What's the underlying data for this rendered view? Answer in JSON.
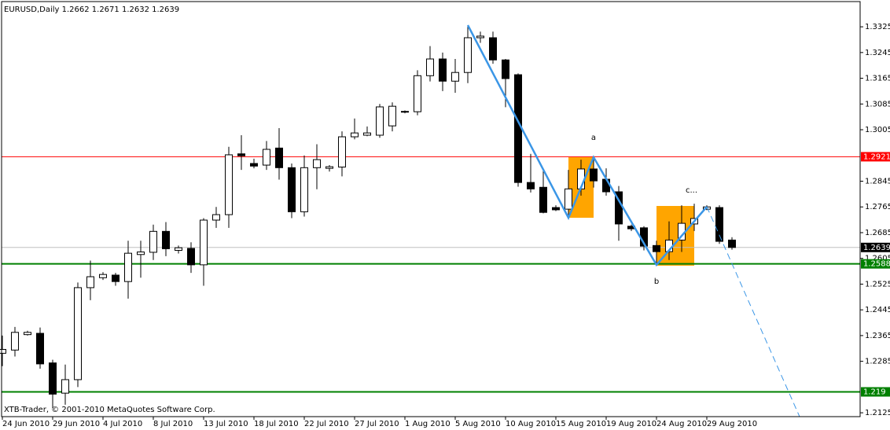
{
  "chart_data": {
    "type": "candlestick",
    "title": "EURUSD,Daily  1.2662 1.2671 1.2632 1.2639",
    "footer": "XTB-Trader, © 2001-2010 MetaQuotes Software Corp.",
    "annotations": [
      "a",
      "b",
      "c..."
    ],
    "categories": [
      "24 Jun 2010",
      null,
      null,
      null,
      "29 Jun 2010",
      null,
      null,
      null,
      "4 Jul 2010",
      null,
      null,
      null,
      "8 Jul 2010",
      null,
      null,
      null,
      "13 Jul 2010",
      null,
      null,
      null,
      "18 Jul 2010",
      null,
      null,
      null,
      "22 Jul 2010",
      null,
      null,
      null,
      "27 Jul 2010",
      null,
      null,
      null,
      "1 Aug 2010",
      null,
      null,
      null,
      "5 Aug 2010",
      null,
      null,
      null,
      "10 Aug 2010",
      null,
      null,
      null,
      "15 Aug 2010",
      null,
      null,
      null,
      "19 Aug 2010",
      null,
      null,
      null,
      "24 Aug 2010",
      null,
      null,
      null,
      "29 Aug 2010",
      null,
      null
    ],
    "open": [
      1.231,
      1.232,
      1.2368,
      1.2372,
      1.228,
      1.2186,
      1.2228,
      1.2514,
      1.2545,
      1.2553,
      1.2533,
      1.2617,
      1.2624,
      1.2689,
      1.263,
      1.2636,
      1.2585,
      1.2724,
      1.2741,
      1.293,
      1.29,
      1.2895,
      1.2948,
      1.2887,
      1.275,
      1.2887,
      1.2885,
      1.2889,
      1.2983,
      1.2988,
      1.2988,
      1.3017,
      1.3062,
      1.3061,
      1.3173,
      1.3225,
      1.3156,
      1.3183,
      1.3291,
      1.3291,
      1.3222,
      1.3176,
      1.2841,
      1.2826,
      1.2763,
      1.2758,
      1.2821,
      1.2883,
      1.2851,
      1.2812,
      1.2705,
      1.27,
      1.2645,
      1.2626,
      1.2662,
      1.2712,
      1.2758,
      1.2763,
      1.2662
    ],
    "high": [
      1.2365,
      1.2392,
      1.238,
      1.239,
      1.229,
      1.2275,
      1.253,
      1.2598,
      1.2562,
      1.256,
      1.266,
      1.266,
      1.271,
      1.2718,
      1.2645,
      1.2655,
      1.273,
      1.2765,
      1.2952,
      1.2988,
      1.2915,
      1.297,
      1.301,
      1.29,
      1.2925,
      1.296,
      1.2895,
      1.3,
      1.304,
      1.3015,
      1.3085,
      1.309,
      1.3065,
      1.319,
      1.3265,
      1.3245,
      1.3225,
      1.3325,
      1.331,
      1.331,
      1.3225,
      1.318,
      1.293,
      1.288,
      1.277,
      1.288,
      1.2912,
      1.292,
      1.2885,
      1.283,
      1.271,
      1.2705,
      1.266,
      1.272,
      1.277,
      1.2775,
      1.277,
      1.277,
      1.2671
    ],
    "low": [
      1.227,
      1.23,
      1.2365,
      1.2262,
      1.214,
      1.215,
      1.2205,
      1.2475,
      1.2538,
      1.252,
      1.248,
      1.2545,
      1.26,
      1.2612,
      1.262,
      1.256,
      1.252,
      1.27,
      1.27,
      1.288,
      1.2885,
      1.288,
      1.285,
      1.273,
      1.2735,
      1.282,
      1.2875,
      1.286,
      1.2975,
      1.2985,
      1.298,
      1.3,
      1.3056,
      1.305,
      1.3155,
      1.3125,
      1.312,
      1.315,
      1.3275,
      1.321,
      1.3075,
      1.2828,
      1.281,
      1.2745,
      1.2752,
      1.274,
      1.28,
      1.2825,
      1.28,
      1.266,
      1.269,
      1.263,
      1.259,
      1.26,
      1.2625,
      1.269,
      1.2755,
      1.265,
      1.2632
    ],
    "close": [
      1.2322,
      1.2375,
      1.2375,
      1.2277,
      1.2183,
      1.2228,
      1.2514,
      1.2548,
      1.2555,
      1.2533,
      1.2621,
      1.2625,
      1.2689,
      1.2635,
      1.2638,
      1.2585,
      1.2724,
      1.2741,
      1.2927,
      1.2924,
      1.2892,
      1.2944,
      1.2887,
      1.275,
      1.2887,
      1.2912,
      1.289,
      1.2983,
      1.2995,
      1.2995,
      1.3076,
      1.3078,
      1.306,
      1.3173,
      1.3225,
      1.3156,
      1.3183,
      1.3291,
      1.3296,
      1.3222,
      1.3164,
      1.2841,
      1.2821,
      1.2748,
      1.2756,
      1.2821,
      1.2883,
      1.2846,
      1.2812,
      1.2712,
      1.2697,
      1.2643,
      1.2626,
      1.2662,
      1.2714,
      1.2729,
      1.2765,
      1.2658,
      1.2639
    ],
    "ylim": [
      1.2113,
      1.3401
    ],
    "yticks": [
      1.3325,
      1.3245,
      1.3165,
      1.3085,
      1.3005,
      1.2845,
      1.2765,
      1.2685,
      1.2605,
      1.2525,
      1.2445,
      1.2365,
      1.2285,
      1.2125
    ],
    "levels": [
      {
        "value": 1.2921,
        "color": "#ff0000"
      },
      {
        "value": 1.2588,
        "color": "#008000"
      },
      {
        "value": 1.219,
        "color": "#008000"
      },
      {
        "value": 1.2639,
        "color": "#000000"
      }
    ],
    "up_color": "#ffffff",
    "down_color": "#000000"
  }
}
